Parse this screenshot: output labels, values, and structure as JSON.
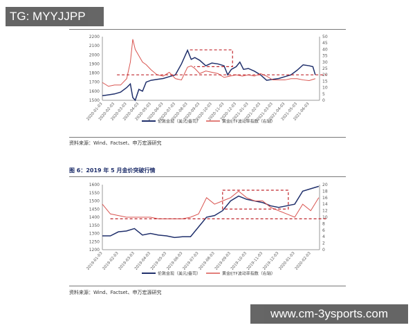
{
  "watermark": "TG: MYYJJPP",
  "site": "www.cm-3ysports.com",
  "colors": {
    "gold": "#1f2f6b",
    "etf": "#d9534f",
    "dash": "#c0262c"
  },
  "chart_data": [
    {
      "type": "line",
      "title": "",
      "legend": [
        "伦敦金现（美元/盎司）",
        "黄金ETF波动率指数（右轴）"
      ],
      "source": "资料来源：Wind、Factset、申万宏源研究",
      "xticks": [
        "2020-01-03",
        "2020-02-03",
        "2020-03-03",
        "2020-04-03",
        "2020-05-03",
        "2020-06-03",
        "2020-07-03",
        "2020-08-03",
        "2020-09-03",
        "2020-10-03",
        "2020-11-03",
        "2020-12-03",
        "2021-01-03",
        "2021-02-03",
        "2021-03-03",
        "2021-04-03",
        "2021-05-03",
        "2021-06-03"
      ],
      "ylim": [
        1500,
        2200
      ],
      "yticks": [
        1500,
        1600,
        1700,
        1800,
        1900,
        2000,
        2100,
        2200
      ],
      "y2lim": [
        0,
        50
      ],
      "y2ticks": [
        0,
        5,
        10,
        15,
        20,
        25,
        30,
        35,
        40,
        45,
        50
      ],
      "xmax": 17.8,
      "series": [
        {
          "name": "伦敦金现（美元/盎司）",
          "axis": "left",
          "x": [
            0,
            0.5,
            1,
            1.5,
            2,
            2.3,
            2.5,
            2.7,
            3,
            3.3,
            3.6,
            4,
            4.5,
            5,
            5.5,
            6,
            6.5,
            7,
            7.3,
            7.6,
            8,
            8.5,
            9,
            9.5,
            10,
            10.3,
            10.6,
            11,
            11.3,
            11.6,
            12,
            12.5,
            13,
            13.5,
            14,
            14.5,
            15,
            15.5,
            16,
            16.5,
            17,
            17.3,
            17.5
          ],
          "values": [
            1550,
            1560,
            1570,
            1590,
            1640,
            1680,
            1530,
            1500,
            1620,
            1600,
            1700,
            1720,
            1730,
            1740,
            1760,
            1780,
            1900,
            2050,
            1950,
            1970,
            1940,
            1880,
            1910,
            1900,
            1880,
            1780,
            1840,
            1870,
            1920,
            1840,
            1850,
            1820,
            1780,
            1720,
            1730,
            1740,
            1760,
            1780,
            1830,
            1890,
            1880,
            1870,
            1780
          ]
        },
        {
          "name": "黄金ETF波动率指数（右轴）",
          "axis": "right",
          "x": [
            0,
            0.5,
            1,
            1.5,
            2,
            2.3,
            2.5,
            2.7,
            3,
            3.3,
            3.6,
            4,
            4.5,
            5,
            5.5,
            6,
            6.5,
            7,
            7.3,
            7.6,
            8,
            8.5,
            9,
            9.5,
            10,
            10.5,
            11,
            11.5,
            12,
            12.5,
            13,
            13.5,
            14,
            14.5,
            15,
            15.5,
            16,
            16.5,
            17,
            17.5
          ],
          "values": [
            14,
            11,
            12,
            12,
            17,
            30,
            48,
            40,
            35,
            30,
            28,
            24,
            20,
            19,
            22,
            17,
            16,
            26,
            27,
            25,
            21,
            23,
            22,
            21,
            18,
            19,
            20,
            19,
            20,
            19,
            21,
            19,
            16,
            16,
            16,
            17,
            17,
            16,
            15.5,
            17
          ]
        }
      ],
      "annotations": {
        "hline_right": 20,
        "hline_from": 1.2,
        "box": {
          "x": [
            7.2,
            10.7
          ],
          "y": [
            1870,
            2055
          ],
          "sides": "top-right-bottom"
        }
      }
    },
    {
      "type": "line",
      "title": "图 6：2019 年 5 月金价突破行情",
      "legend": [
        "伦敦金现（美元/盎司）",
        "黄金ETF波动率指数（右轴）"
      ],
      "source": "资料来源：Wind、Factset、申万宏源研究",
      "xticks": [
        "2019-01-03",
        "2019-02-03",
        "2019-03-03",
        "2019-04-03",
        "2019-05-03",
        "2019-06-03",
        "2019-07-03",
        "2019-08-03",
        "2019-09-03",
        "2019-10-03",
        "2019-11-03",
        "2019-12-03",
        "2020-01-03",
        "2020-02-03"
      ],
      "ylim": [
        1200,
        1600
      ],
      "yticks": [
        1200,
        1250,
        1300,
        1350,
        1400,
        1450,
        1500,
        1550,
        1600
      ],
      "y2lim": [
        0,
        20
      ],
      "y2ticks": [
        0,
        2,
        4,
        6,
        8,
        10,
        12,
        14,
        16,
        18,
        20
      ],
      "xmax": 13.5,
      "series": [
        {
          "name": "伦敦金现（美元/盎司）",
          "axis": "left",
          "x": [
            0,
            0.5,
            1,
            1.5,
            2,
            2.5,
            3,
            3.5,
            4,
            4.5,
            5,
            5.5,
            6,
            6.5,
            7,
            7.5,
            8,
            8.5,
            9,
            9.5,
            10,
            10.5,
            11,
            11.5,
            12,
            12.5,
            13,
            13.5
          ],
          "values": [
            1285,
            1285,
            1310,
            1315,
            1330,
            1290,
            1300,
            1290,
            1285,
            1275,
            1280,
            1280,
            1340,
            1400,
            1410,
            1440,
            1500,
            1530,
            1510,
            1500,
            1490,
            1470,
            1460,
            1470,
            1480,
            1560,
            1575,
            1590
          ]
        },
        {
          "name": "黄金ETF波动率指数（右轴）",
          "axis": "right",
          "x": [
            0,
            0.5,
            1,
            1.5,
            2,
            2.5,
            3,
            3.5,
            4,
            4.5,
            5,
            5.5,
            6,
            6.5,
            7,
            7.5,
            8,
            8.5,
            9,
            9.5,
            10,
            10.5,
            11,
            11.5,
            12,
            12.5,
            13,
            13.5
          ],
          "values": [
            14,
            11,
            10.5,
            10,
            10,
            10,
            10,
            9.5,
            9.5,
            9.5,
            9.5,
            10,
            11,
            16,
            14,
            15,
            16,
            18,
            16,
            15,
            15,
            13,
            12,
            11,
            10,
            14,
            12,
            16
          ]
        }
      ],
      "annotations": {
        "hline_right": 9.5,
        "hline_from": 0.5,
        "box": {
          "x": [
            7.5,
            11.6
          ],
          "y2": [
            12.5,
            18.3
          ],
          "sides": "all"
        }
      }
    }
  ]
}
